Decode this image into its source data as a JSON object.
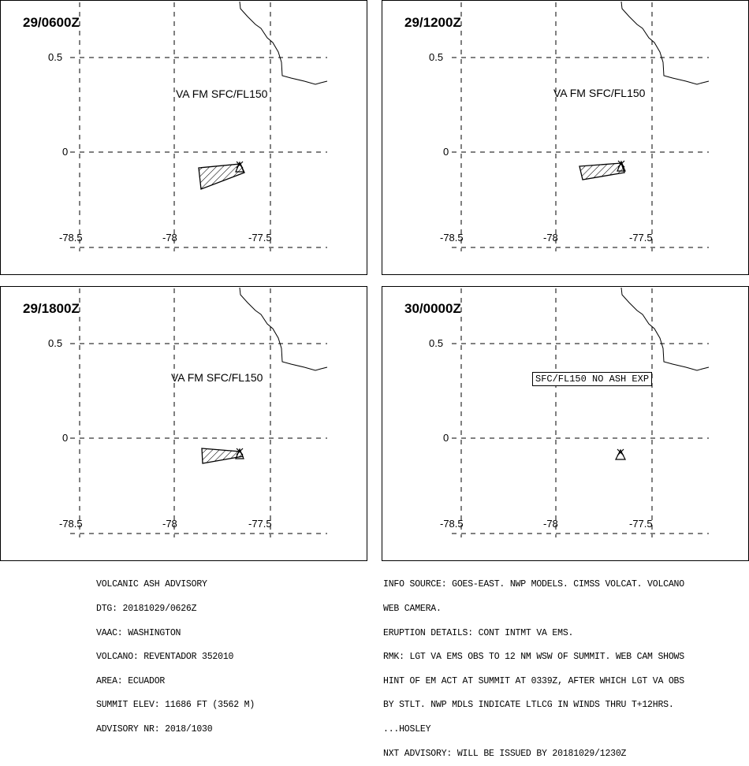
{
  "axes": {
    "lat_ticks": [
      "0.5",
      "0"
    ],
    "lon_ticks": [
      "-78.5",
      "-78",
      "-77.5"
    ]
  },
  "panels": [
    {
      "time": "29/0600Z",
      "label": "VA FM SFC/FL150",
      "ash": true
    },
    {
      "time": "29/1200Z",
      "label": "VA FM SFC/FL150",
      "ash": true
    },
    {
      "time": "29/1800Z",
      "label": "VA FM SFC/FL150",
      "ash": true
    },
    {
      "time": "30/0000Z",
      "label": "SFC/FL150 NO ASH EXP",
      "ash": false
    }
  ],
  "advisory_left": [
    "VOLCANIC ASH ADVISORY",
    "DTG: 20181029/0626Z",
    "VAAC: WASHINGTON",
    "VOLCANO: REVENTADOR 352010",
    "AREA: ECUADOR",
    "SUMMIT ELEV: 11686 FT (3562 M)",
    "ADVISORY NR: 2018/1030"
  ],
  "advisory_right": [
    "INFO SOURCE: GOES-EAST. NWP MODELS. CIMSS VOLCAT. VOLCANO",
    "WEB CAMERA.",
    "ERUPTION DETAILS: CONT INTMT VA EMS.",
    "RMK: LGT VA EMS OBS TO 12 NM WSW OF SUMMIT. WEB CAM SHOWS",
    "HINT OF EM ACT AT SUMMIT AT 0339Z, AFTER WHICH LGT VA OBS",
    "BY STLT. NWP MDLS INDICATE LTLCG IN WINDS THRU T+12HRS.",
    "...HOSLEY",
    "NXT ADVISORY: WILL BE ISSUED BY 20181029/1230Z"
  ]
}
